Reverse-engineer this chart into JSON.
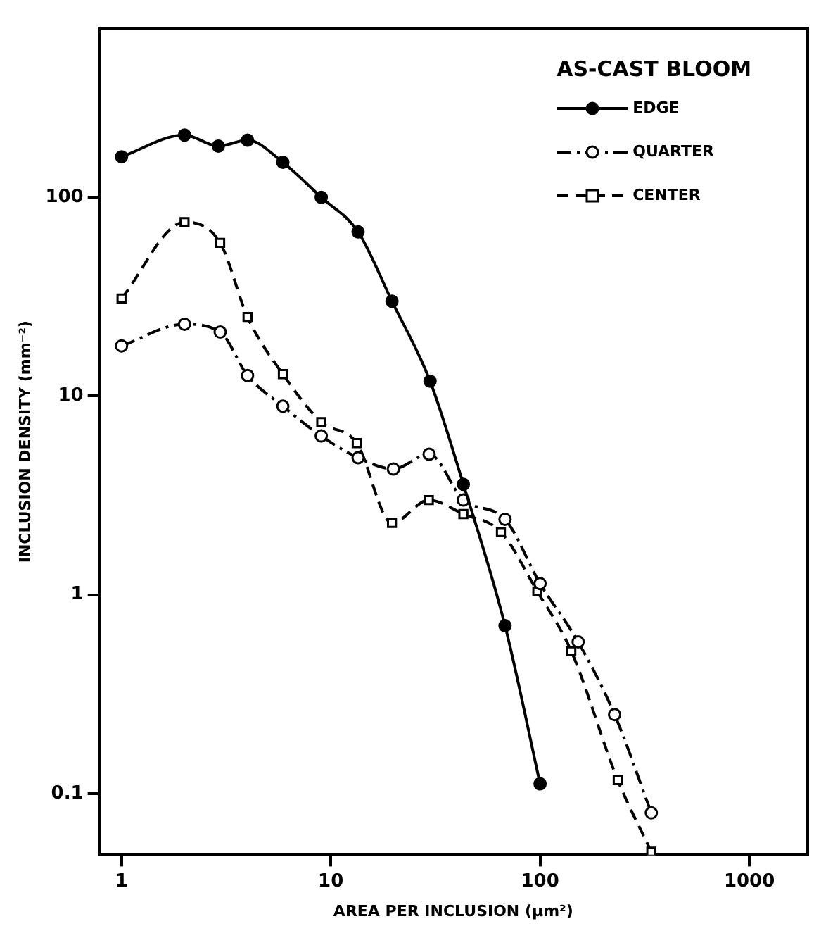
{
  "chart_data": {
    "type": "line",
    "xlabel": "AREA PER INCLUSION (μm²)",
    "ylabel": "INCLUSION DENSITY (mm⁻²)",
    "legend_title": "AS-CAST BLOOM",
    "legend": "top right",
    "log": "xy",
    "grid": false,
    "xlim": [
      0.78,
      1900
    ],
    "ylim": [
      0.049,
      710
    ],
    "xticks": [
      1,
      10,
      100,
      1000
    ],
    "yticks": [
      0.1,
      1,
      10,
      100
    ],
    "series": [
      {
        "name": "EDGE",
        "color": "#000000",
        "marker": "circle",
        "line_style": "solid",
        "x": [
          1,
          2,
          2.9,
          4,
          5.9,
          9,
          13.5,
          19.6,
          29.8,
          43,
          68,
          100
        ],
        "values": [
          160,
          206,
          181,
          194,
          150,
          100,
          67,
          30,
          11.9,
          3.6,
          0.7,
          0.112
        ]
      },
      {
        "name": "QUARTER",
        "color": "#000000",
        "marker": "circle",
        "line_style": "dashdot",
        "x": [
          1,
          2,
          2.96,
          4,
          5.9,
          9,
          13.5,
          19.9,
          29.5,
          43,
          68,
          100,
          152,
          227,
          340
        ],
        "values": [
          17.9,
          23,
          21,
          12.7,
          8.9,
          6.3,
          4.9,
          4.3,
          5.1,
          3.0,
          2.4,
          1.14,
          0.58,
          0.25,
          0.08
        ]
      },
      {
        "name": "CENTER",
        "color": "#000000",
        "marker": "square",
        "line_style": "dashed",
        "x": [
          1,
          2,
          2.96,
          4,
          5.9,
          9,
          13.3,
          19.6,
          29.4,
          43,
          65,
          97,
          141,
          235,
          340
        ],
        "values": [
          31,
          75,
          59,
          25,
          12.9,
          7.4,
          5.8,
          2.3,
          3.0,
          2.55,
          2.07,
          1.04,
          0.52,
          0.117,
          0.051
        ]
      }
    ]
  }
}
